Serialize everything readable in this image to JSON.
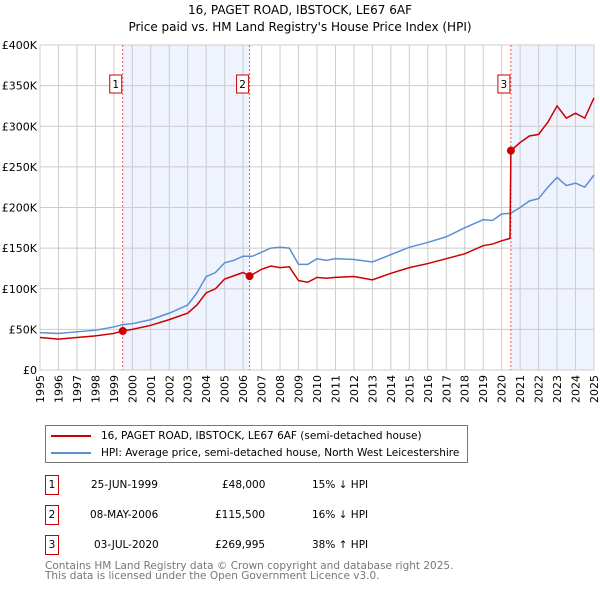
{
  "chart_data": {
    "type": "line",
    "title": "16, PAGET ROAD, IBSTOCK, LE67 6AF",
    "subtitle": "Price paid vs. HM Land Registry's House Price Index (HPI)",
    "xlim": [
      1995,
      2025
    ],
    "ylim": [
      0,
      400000
    ],
    "x_ticks": [
      "1995",
      "1996",
      "1997",
      "1998",
      "1999",
      "2000",
      "2001",
      "2002",
      "2003",
      "2004",
      "2005",
      "2006",
      "2007",
      "2008",
      "2009",
      "2010",
      "2011",
      "2012",
      "2013",
      "2014",
      "2015",
      "2016",
      "2017",
      "2018",
      "2019",
      "2020",
      "2021",
      "2022",
      "2023",
      "2024",
      "2025"
    ],
    "y_ticks": [
      {
        "v": 0,
        "l": "£0"
      },
      {
        "v": 50000,
        "l": "£50K"
      },
      {
        "v": 100000,
        "l": "£100K"
      },
      {
        "v": 150000,
        "l": "£150K"
      },
      {
        "v": 200000,
        "l": "£200K"
      },
      {
        "v": 250000,
        "l": "£250K"
      },
      {
        "v": 300000,
        "l": "£300K"
      },
      {
        "v": 350000,
        "l": "£350K"
      },
      {
        "v": 400000,
        "l": "£400K"
      }
    ],
    "grid": true,
    "series": [
      {
        "name": "16, PAGET ROAD, IBSTOCK, LE67 6AF (semi-detached house)",
        "color": "#cc0000",
        "x": [
          1995,
          1996,
          1997,
          1998,
          1999,
          1999.48,
          2000,
          2001,
          2002,
          2003,
          2003.5,
          2004,
          2004.5,
          2005,
          2005.5,
          2006,
          2006.35,
          2007,
          2007.5,
          2008,
          2008.5,
          2009,
          2009.5,
          2010,
          2010.5,
          2011,
          2012,
          2013,
          2014,
          2015,
          2016,
          2017,
          2018,
          2019,
          2019.5,
          2020,
          2020.45,
          2020.5,
          2021,
          2021.5,
          2022,
          2022.5,
          2023,
          2023.5,
          2024,
          2024.5,
          2025
        ],
        "y": [
          40000,
          38000,
          40000,
          42000,
          45000,
          48000,
          50000,
          55000,
          62000,
          70000,
          80000,
          95000,
          100000,
          112000,
          116000,
          120000,
          115500,
          124000,
          128000,
          126000,
          127000,
          110000,
          108000,
          114000,
          113000,
          114000,
          115000,
          111000,
          119000,
          126000,
          131000,
          137000,
          143000,
          153000,
          155000,
          159000,
          162000,
          269995,
          280000,
          288000,
          290000,
          305000,
          325000,
          310000,
          316000,
          310000,
          335000
        ]
      },
      {
        "name": "HPI: Average price, semi-detached house, North West Leicestershire",
        "color": "#5b8fd4",
        "x": [
          1995,
          1996,
          1997,
          1998,
          1999,
          1999.5,
          2000,
          2001,
          2002,
          2003,
          2003.5,
          2004,
          2004.5,
          2005,
          2005.5,
          2006,
          2006.5,
          2007,
          2007.5,
          2008,
          2008.5,
          2009,
          2009.5,
          2010,
          2010.5,
          2011,
          2012,
          2013,
          2014,
          2015,
          2016,
          2017,
          2018,
          2019,
          2019.5,
          2020,
          2020.5,
          2021,
          2021.5,
          2022,
          2022.5,
          2023,
          2023.5,
          2024,
          2024.5,
          2025
        ],
        "y": [
          46000,
          45000,
          47000,
          49000,
          53000,
          56000,
          57000,
          62000,
          70000,
          80000,
          95000,
          115000,
          120000,
          132000,
          135000,
          140000,
          140000,
          145000,
          150000,
          151000,
          150000,
          130000,
          130000,
          137000,
          135000,
          137000,
          136000,
          133000,
          142000,
          151000,
          157000,
          164000,
          175000,
          185000,
          184000,
          192000,
          193000,
          200000,
          208000,
          211000,
          225000,
          237000,
          227000,
          230000,
          225000,
          240000
        ]
      }
    ],
    "annotations": [
      {
        "label": "1",
        "x": 1999.48,
        "y": 48000
      },
      {
        "label": "2",
        "x": 2006.35,
        "y": 115500
      },
      {
        "label": "3",
        "x": 2020.5,
        "y": 269995
      }
    ],
    "shaded": [
      [
        1999.48,
        2006.35
      ],
      [
        2020.5,
        2025
      ]
    ],
    "legend_placement": "below"
  },
  "transactions": [
    {
      "n": "1",
      "date": "25-JUN-1999",
      "price": "£48,000",
      "hpi": "15% ↓ HPI"
    },
    {
      "n": "2",
      "date": "08-MAY-2006",
      "price": "£115,500",
      "hpi": "16% ↓ HPI"
    },
    {
      "n": "3",
      "date": "03-JUL-2020",
      "price": "£269,995",
      "hpi": "38% ↑ HPI"
    }
  ],
  "footer": [
    "Contains HM Land Registry data © Crown copyright and database right 2025.",
    "This data is licensed under the Open Government Licence v3.0."
  ]
}
